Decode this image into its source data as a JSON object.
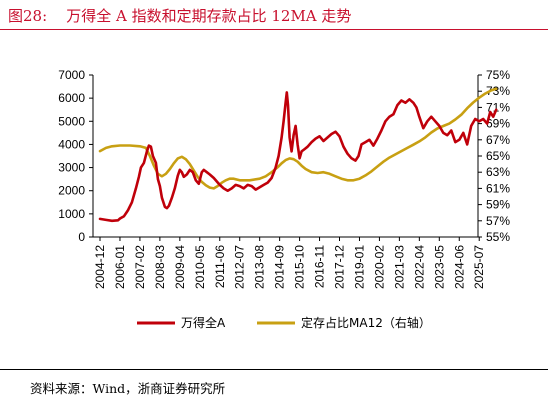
{
  "figure_title": "图28:    万得全 A 指数和定期存款占比 12MA 走势",
  "source": "资料来源：Wind，浙商证券研究所",
  "colors": {
    "title": "#c8102e",
    "series_index": "#c0000a",
    "series_ratio": "#c8a013"
  },
  "chart_data": {
    "type": "line",
    "x_categories": [
      "2004-12",
      "2006-01",
      "2007-02",
      "2008-03",
      "2009-04",
      "2010-05",
      "2011-06",
      "2012-07",
      "2013-08",
      "2014-09",
      "2015-10",
      "2016-11",
      "2017-12",
      "2019-01",
      "2020-02",
      "2021-03",
      "2022-04",
      "2023-05",
      "2024-06",
      "2025-07"
    ],
    "left_axis": {
      "ylim": [
        0,
        7000
      ],
      "ticks": [
        "0",
        "1000",
        "2000",
        "3000",
        "4000",
        "5000",
        "6000",
        "7000"
      ]
    },
    "right_axis": {
      "ylim": [
        55,
        75
      ],
      "ticks": [
        "55%",
        "57%",
        "59%",
        "61%",
        "63%",
        "65%",
        "67%",
        "69%",
        "71%",
        "73%",
        "75%"
      ]
    },
    "series": [
      {
        "name": "万得全A",
        "axis": "left",
        "points": [
          [
            0.0,
            780
          ],
          [
            0.3,
            740
          ],
          [
            0.6,
            700
          ],
          [
            0.9,
            720
          ],
          [
            1.0,
            800
          ],
          [
            1.2,
            900
          ],
          [
            1.4,
            1150
          ],
          [
            1.6,
            1500
          ],
          [
            1.8,
            2100
          ],
          [
            1.95,
            2600
          ],
          [
            2.05,
            3000
          ],
          [
            2.2,
            3200
          ],
          [
            2.35,
            3700
          ],
          [
            2.45,
            3950
          ],
          [
            2.55,
            3900
          ],
          [
            2.65,
            3500
          ],
          [
            2.8,
            3200
          ],
          [
            2.9,
            2500
          ],
          [
            3.0,
            2200
          ],
          [
            3.1,
            1700
          ],
          [
            3.25,
            1300
          ],
          [
            3.35,
            1250
          ],
          [
            3.45,
            1350
          ],
          [
            3.6,
            1700
          ],
          [
            3.75,
            2100
          ],
          [
            3.9,
            2650
          ],
          [
            4.0,
            2900
          ],
          [
            4.1,
            2800
          ],
          [
            4.2,
            2600
          ],
          [
            4.35,
            2700
          ],
          [
            4.5,
            2900
          ],
          [
            4.65,
            2800
          ],
          [
            4.8,
            2450
          ],
          [
            4.95,
            2300
          ],
          [
            5.1,
            2800
          ],
          [
            5.2,
            2900
          ],
          [
            5.35,
            2800
          ],
          [
            5.5,
            2700
          ],
          [
            5.7,
            2550
          ],
          [
            5.9,
            2350
          ],
          [
            6.0,
            2250
          ],
          [
            6.2,
            2100
          ],
          [
            6.4,
            2000
          ],
          [
            6.6,
            2100
          ],
          [
            6.8,
            2250
          ],
          [
            7.0,
            2200
          ],
          [
            7.2,
            2100
          ],
          [
            7.4,
            2250
          ],
          [
            7.6,
            2200
          ],
          [
            7.8,
            2050
          ],
          [
            8.0,
            2150
          ],
          [
            8.2,
            2250
          ],
          [
            8.4,
            2350
          ],
          [
            8.6,
            2550
          ],
          [
            8.8,
            3000
          ],
          [
            8.95,
            3500
          ],
          [
            9.1,
            4300
          ],
          [
            9.2,
            5000
          ],
          [
            9.3,
            5800
          ],
          [
            9.36,
            6250
          ],
          [
            9.42,
            5700
          ],
          [
            9.5,
            4300
          ],
          [
            9.6,
            3700
          ],
          [
            9.7,
            4400
          ],
          [
            9.8,
            4800
          ],
          [
            9.9,
            4000
          ],
          [
            10.0,
            3400
          ],
          [
            10.1,
            3700
          ],
          [
            10.25,
            3800
          ],
          [
            10.4,
            3900
          ],
          [
            10.6,
            4100
          ],
          [
            10.8,
            4250
          ],
          [
            11.0,
            4350
          ],
          [
            11.2,
            4150
          ],
          [
            11.4,
            4300
          ],
          [
            11.6,
            4450
          ],
          [
            11.8,
            4550
          ],
          [
            12.0,
            4350
          ],
          [
            12.2,
            3900
          ],
          [
            12.4,
            3600
          ],
          [
            12.6,
            3400
          ],
          [
            12.8,
            3300
          ],
          [
            12.95,
            3500
          ],
          [
            13.1,
            4000
          ],
          [
            13.3,
            4100
          ],
          [
            13.5,
            4200
          ],
          [
            13.7,
            3950
          ],
          [
            13.9,
            4250
          ],
          [
            14.1,
            4600
          ],
          [
            14.3,
            5000
          ],
          [
            14.5,
            5200
          ],
          [
            14.7,
            5300
          ],
          [
            14.9,
            5700
          ],
          [
            15.1,
            5900
          ],
          [
            15.3,
            5800
          ],
          [
            15.5,
            5950
          ],
          [
            15.7,
            5800
          ],
          [
            15.85,
            5600
          ],
          [
            16.0,
            5200
          ],
          [
            16.2,
            4700
          ],
          [
            16.4,
            5000
          ],
          [
            16.6,
            5200
          ],
          [
            16.8,
            5000
          ],
          [
            17.0,
            4800
          ],
          [
            17.2,
            4500
          ],
          [
            17.4,
            4400
          ],
          [
            17.6,
            4600
          ],
          [
            17.8,
            4100
          ],
          [
            18.0,
            4200
          ],
          [
            18.2,
            4500
          ],
          [
            18.4,
            4000
          ],
          [
            18.6,
            4800
          ],
          [
            18.8,
            5100
          ],
          [
            19.0,
            5000
          ],
          [
            19.2,
            5100
          ],
          [
            19.4,
            4900
          ],
          [
            19.55,
            5400
          ],
          [
            19.7,
            5200
          ],
          [
            19.85,
            5500
          ]
        ]
      },
      {
        "name": "定存占比MA12（右轴）",
        "axis": "right",
        "points": [
          [
            0.0,
            65.6
          ],
          [
            0.3,
            66.0
          ],
          [
            0.6,
            66.2
          ],
          [
            1.0,
            66.3
          ],
          [
            1.5,
            66.3
          ],
          [
            2.0,
            66.2
          ],
          [
            2.3,
            66.0
          ],
          [
            2.5,
            65.0
          ],
          [
            2.7,
            63.8
          ],
          [
            2.9,
            62.8
          ],
          [
            3.1,
            62.5
          ],
          [
            3.3,
            62.8
          ],
          [
            3.5,
            63.4
          ],
          [
            3.7,
            64.1
          ],
          [
            3.9,
            64.7
          ],
          [
            4.1,
            64.9
          ],
          [
            4.3,
            64.6
          ],
          [
            4.5,
            64.0
          ],
          [
            4.7,
            63.2
          ],
          [
            4.9,
            62.4
          ],
          [
            5.1,
            61.8
          ],
          [
            5.3,
            61.4
          ],
          [
            5.5,
            61.1
          ],
          [
            5.7,
            61.0
          ],
          [
            5.9,
            61.3
          ],
          [
            6.1,
            61.7
          ],
          [
            6.3,
            62.0
          ],
          [
            6.5,
            62.2
          ],
          [
            6.7,
            62.2
          ],
          [
            7.0,
            62.0
          ],
          [
            7.5,
            62.0
          ],
          [
            8.0,
            62.2
          ],
          [
            8.3,
            62.5
          ],
          [
            8.6,
            63.0
          ],
          [
            8.9,
            63.6
          ],
          [
            9.1,
            64.1
          ],
          [
            9.3,
            64.5
          ],
          [
            9.5,
            64.7
          ],
          [
            9.7,
            64.6
          ],
          [
            9.9,
            64.3
          ],
          [
            10.1,
            63.8
          ],
          [
            10.3,
            63.4
          ],
          [
            10.6,
            63.0
          ],
          [
            10.9,
            62.9
          ],
          [
            11.2,
            63.0
          ],
          [
            11.5,
            62.8
          ],
          [
            11.8,
            62.5
          ],
          [
            12.1,
            62.2
          ],
          [
            12.4,
            62.0
          ],
          [
            12.7,
            62.0
          ],
          [
            13.0,
            62.2
          ],
          [
            13.3,
            62.6
          ],
          [
            13.6,
            63.1
          ],
          [
            13.9,
            63.7
          ],
          [
            14.2,
            64.3
          ],
          [
            14.5,
            64.8
          ],
          [
            14.8,
            65.2
          ],
          [
            15.1,
            65.6
          ],
          [
            15.4,
            66.0
          ],
          [
            15.7,
            66.4
          ],
          [
            16.0,
            66.8
          ],
          [
            16.3,
            67.3
          ],
          [
            16.6,
            67.9
          ],
          [
            16.9,
            68.4
          ],
          [
            17.2,
            68.7
          ],
          [
            17.5,
            69.0
          ],
          [
            17.8,
            69.5
          ],
          [
            18.1,
            70.1
          ],
          [
            18.4,
            70.9
          ],
          [
            18.7,
            71.6
          ],
          [
            19.0,
            72.2
          ],
          [
            19.3,
            72.7
          ],
          [
            19.6,
            73.1
          ],
          [
            19.85,
            73.3
          ]
        ]
      }
    ],
    "legend_position": "bottom",
    "grid": false
  }
}
